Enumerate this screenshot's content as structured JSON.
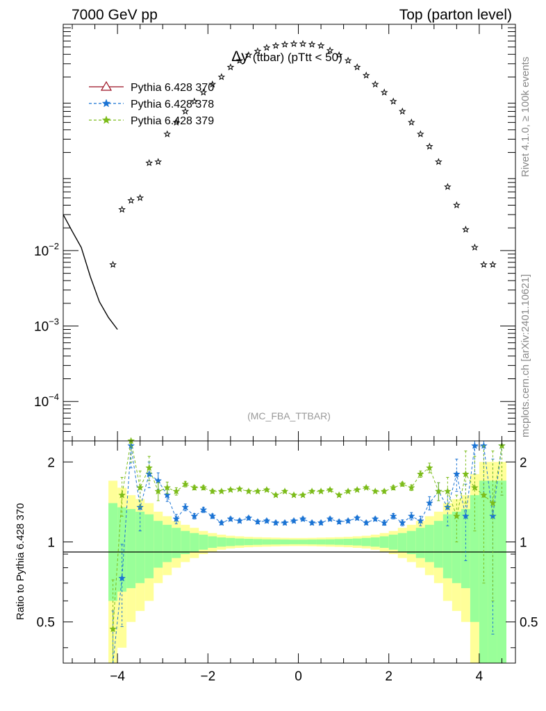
{
  "header": {
    "left": "7000 GeV pp",
    "right": "Top (parton level)"
  },
  "side": {
    "rivet": "Rivet 4.1.0, ≥ 100k events",
    "source": "mcplots.cern.ch [arXiv:2401.10621]"
  },
  "title": {
    "main": "Δy",
    "sub": "(ttbar) (pTtt < 50)"
  },
  "watermark": "(MC_FBA_TTBAR)",
  "colors": {
    "ref": "#000000",
    "s370": "#9b0f20",
    "s378": "#1a73d4",
    "s379": "#7cbc1a",
    "band_yellow": "#ffff99",
    "band_green": "#99ff99"
  },
  "legend": [
    {
      "label": "Pythia 6.428 370",
      "marker": "triangle-open",
      "style": "solid",
      "color": "#9b0f20"
    },
    {
      "label": "Pythia 6.428 378",
      "marker": "star",
      "style": "dashed",
      "color": "#1a73d4"
    },
    {
      "label": "Pythia 6.428 379",
      "marker": "star",
      "style": "dashed",
      "color": "#7cbc1a"
    }
  ],
  "chart_data": {
    "type": "scatter",
    "xlim": [
      -5.2,
      4.8
    ],
    "main": {
      "yscale": "log",
      "ylim": [
        3e-05,
        10
      ],
      "ytick_labels": [
        "10^-4",
        "10^-3",
        "10^-2"
      ],
      "reference_x": [
        -4.1,
        -3.9,
        -3.7,
        -3.5,
        -3.3,
        -3.1,
        -2.9,
        -2.7,
        -2.5,
        -2.3,
        -2.1,
        -1.9,
        -1.7,
        -1.5,
        -1.3,
        -1.1,
        -0.9,
        -0.7,
        -0.5,
        -0.3,
        -0.1,
        0.1,
        0.3,
        0.5,
        0.7,
        0.9,
        1.1,
        1.3,
        1.5,
        1.7,
        1.9,
        2.1,
        2.3,
        2.5,
        2.7,
        2.9,
        3.1,
        3.3,
        3.5,
        3.7,
        3.9,
        4.1,
        4.3
      ],
      "reference_y": [
        0.0065,
        0.035,
        0.046,
        0.05,
        0.145,
        0.15,
        0.35,
        0.5,
        0.7,
        0.95,
        1.25,
        1.6,
        2.0,
        2.7,
        3.3,
        3.9,
        4.4,
        4.9,
        5.2,
        5.4,
        5.5,
        5.5,
        5.4,
        5.2,
        4.5,
        3.9,
        3.3,
        2.7,
        2.1,
        1.6,
        1.25,
        0.95,
        0.7,
        0.5,
        0.35,
        0.24,
        0.15,
        0.07,
        0.04,
        0.019,
        0.011,
        0.0065,
        0.0065
      ],
      "curve_x": [
        -5.2,
        -5.0,
        -4.8,
        -4.6,
        -4.4,
        -4.2,
        -4.0
      ],
      "curve_y": [
        0.03,
        0.018,
        0.011,
        0.0045,
        0.0021,
        0.0013,
        0.0009
      ]
    },
    "ratio": {
      "ylabel": "Ratio to Pythia 6.428 370",
      "ylim": [
        0.35,
        2.4
      ],
      "ytick_labels": [
        "0.5",
        "1",
        "2"
      ],
      "xtick_labels": [
        "−4",
        "−2",
        "0",
        "2",
        "4"
      ],
      "x": [
        -4.1,
        -3.9,
        -3.7,
        -3.5,
        -3.3,
        -3.1,
        -2.9,
        -2.7,
        -2.5,
        -2.3,
        -2.1,
        -1.9,
        -1.7,
        -1.5,
        -1.3,
        -1.1,
        -0.9,
        -0.7,
        -0.5,
        -0.3,
        -0.1,
        0.1,
        0.3,
        0.5,
        0.7,
        0.9,
        1.1,
        1.3,
        1.5,
        1.7,
        1.9,
        2.1,
        2.3,
        2.5,
        2.7,
        2.9,
        3.1,
        3.3,
        3.5,
        3.7,
        3.9,
        4.1,
        4.3,
        4.5
      ],
      "band_edges": [
        -4.2,
        -4.0,
        -3.8,
        -3.6,
        -3.4,
        -3.2,
        -3.0,
        -2.8,
        -2.6,
        -2.4,
        -2.2,
        -2.0,
        -1.8,
        -1.6,
        -1.4,
        -1.2,
        -1.0,
        -0.8,
        -0.6,
        -0.4,
        -0.2,
        0.0,
        0.2,
        0.4,
        0.6,
        0.8,
        1.0,
        1.2,
        1.4,
        1.6,
        1.8,
        2.0,
        2.2,
        2.4,
        2.6,
        2.8,
        3.0,
        3.2,
        3.4,
        3.6,
        3.8,
        4.0,
        4.2,
        4.4,
        4.6
      ],
      "band_green_half": [
        0.4,
        0.35,
        0.33,
        0.3,
        0.27,
        0.2,
        0.16,
        0.13,
        0.1,
        0.08,
        0.065,
        0.05,
        0.04,
        0.035,
        0.03,
        0.027,
        0.025,
        0.023,
        0.022,
        0.021,
        0.02,
        0.02,
        0.021,
        0.022,
        0.023,
        0.025,
        0.027,
        0.03,
        0.035,
        0.04,
        0.05,
        0.065,
        0.08,
        0.1,
        0.13,
        0.16,
        0.2,
        0.27,
        0.3,
        0.33,
        0.5,
        0.7,
        0.7,
        0.7
      ],
      "band_yellow_half": [
        0.7,
        0.6,
        0.5,
        0.45,
        0.4,
        0.3,
        0.25,
        0.2,
        0.16,
        0.13,
        0.1,
        0.08,
        0.065,
        0.055,
        0.05,
        0.045,
        0.042,
        0.04,
        0.038,
        0.036,
        0.035,
        0.035,
        0.036,
        0.038,
        0.04,
        0.042,
        0.045,
        0.05,
        0.055,
        0.065,
        0.08,
        0.1,
        0.13,
        0.16,
        0.2,
        0.25,
        0.3,
        0.4,
        0.45,
        0.5,
        0.8,
        1.0,
        1.0,
        1.0
      ],
      "series": [
        {
          "name": "Pythia 6.428 378",
          "values": [
            0.3,
            0.73,
            2.3,
            1.35,
            1.8,
            1.7,
            1.5,
            1.22,
            1.35,
            1.25,
            1.32,
            1.25,
            1.18,
            1.22,
            1.2,
            1.23,
            1.19,
            1.2,
            1.18,
            1.18,
            1.2,
            1.22,
            1.18,
            1.18,
            1.22,
            1.19,
            1.2,
            1.23,
            1.18,
            1.22,
            1.18,
            1.25,
            1.18,
            1.25,
            1.2,
            1.4,
            1.55,
            1.35,
            1.8,
            1.25,
            2.3,
            2.3,
            1.25,
            2.3
          ],
          "errors": [
            0.25,
            0.25,
            0.4,
            0.25,
            0.2,
            0.12,
            0.08,
            0.05,
            0.04,
            0.03,
            0.03,
            0.025,
            0.02,
            0.02,
            0.02,
            0.02,
            0.02,
            0.02,
            0.02,
            0.02,
            0.02,
            0.02,
            0.02,
            0.02,
            0.02,
            0.02,
            0.02,
            0.02,
            0.02,
            0.02,
            0.025,
            0.03,
            0.03,
            0.04,
            0.05,
            0.08,
            0.12,
            0.2,
            0.25,
            0.4,
            0.5,
            0.8,
            0.8,
            0.8
          ]
        },
        {
          "name": "Pythia 6.428 379",
          "values": [
            0.47,
            1.5,
            2.4,
            1.6,
            1.9,
            1.55,
            1.6,
            1.55,
            1.65,
            1.6,
            1.6,
            1.55,
            1.55,
            1.57,
            1.58,
            1.55,
            1.55,
            1.57,
            1.5,
            1.55,
            1.5,
            1.5,
            1.55,
            1.55,
            1.57,
            1.5,
            1.55,
            1.57,
            1.6,
            1.55,
            1.55,
            1.6,
            1.65,
            1.6,
            1.8,
            1.9,
            1.55,
            1.55,
            1.25,
            1.8,
            1.6,
            1.5,
            1.4,
            2.3
          ],
          "errors": [
            0.25,
            0.25,
            0.4,
            0.25,
            0.2,
            0.12,
            0.08,
            0.05,
            0.04,
            0.03,
            0.03,
            0.025,
            0.02,
            0.02,
            0.02,
            0.02,
            0.02,
            0.02,
            0.02,
            0.02,
            0.02,
            0.02,
            0.02,
            0.02,
            0.02,
            0.02,
            0.02,
            0.02,
            0.02,
            0.02,
            0.025,
            0.03,
            0.03,
            0.04,
            0.05,
            0.08,
            0.12,
            0.2,
            0.25,
            0.4,
            0.5,
            0.8,
            0.8,
            0.8
          ]
        }
      ]
    }
  }
}
